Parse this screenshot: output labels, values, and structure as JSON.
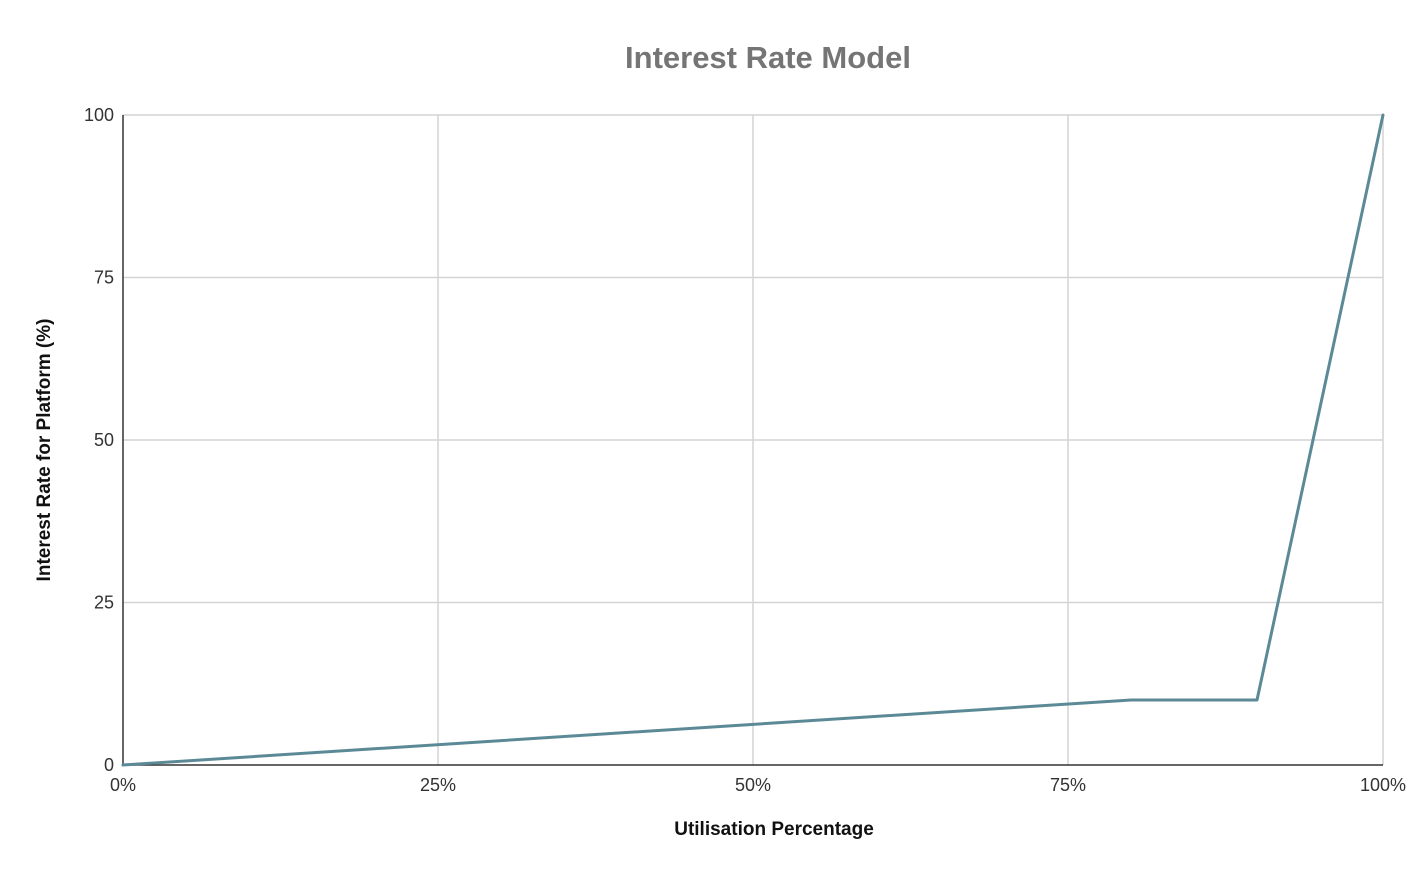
{
  "colors": {
    "series": "#5b8a96",
    "grid": "#d4d4d4",
    "axis": "#333333",
    "title": "#757575"
  },
  "chart_data": {
    "type": "line",
    "title": "Interest Rate Model",
    "xlabel": "Utilisation Percentage",
    "ylabel": "Interest Rate for Platform (%)",
    "xlim": [
      0,
      100
    ],
    "ylim": [
      0,
      100
    ],
    "x_ticks": [
      0,
      25,
      50,
      75,
      100
    ],
    "x_tick_labels": [
      "0%",
      "25%",
      "50%",
      "75%",
      "100%"
    ],
    "y_ticks": [
      0,
      25,
      50,
      75,
      100
    ],
    "y_tick_labels": [
      "0",
      "25",
      "50",
      "75",
      "100"
    ],
    "grid": true,
    "legend": "none",
    "series": [
      {
        "x": [
          0,
          80,
          90,
          100
        ],
        "y": [
          0,
          10,
          10,
          100
        ]
      }
    ]
  }
}
